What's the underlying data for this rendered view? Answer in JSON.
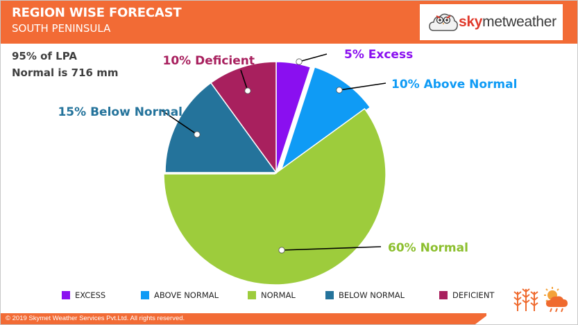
{
  "header": {
    "title": "REGION WISE FORECAST",
    "subtitle": "SOUTH PENINSULA",
    "colors": {
      "bar": "#f26b35",
      "text": "#ffffff"
    }
  },
  "logo": {
    "brand_bold": "sky",
    "brand_rest": "metweather",
    "icon": "cloud-owl-logo-icon"
  },
  "info": {
    "line1": "95% of LPA",
    "line2": "Normal is 716 mm"
  },
  "chart_data": {
    "type": "pie",
    "title": "",
    "start_angle_deg": 0,
    "exploded": "Normal",
    "slices": [
      {
        "name": "Excess",
        "legend": "EXCESS",
        "value": 5,
        "label": "5% Excess",
        "color": "#8a0ff0",
        "label_color": "#8a0ff0"
      },
      {
        "name": "Above Normal",
        "legend": "ABOVE NORMAL",
        "value": 10,
        "label": "10% Above Normal",
        "color": "#0f9bf5",
        "label_color": "#0f9bf5"
      },
      {
        "name": "Normal",
        "legend": "NORMAL",
        "value": 60,
        "label": "60% Normal",
        "color": "#9dcc3c",
        "label_color": "#8cbf2e"
      },
      {
        "name": "Below Normal",
        "legend": "BELOW NORMAL",
        "value": 15,
        "label": "15% Below Normal",
        "color": "#24739b",
        "label_color": "#24739b"
      },
      {
        "name": "Deficient",
        "legend": "DEFICIENT",
        "value": 10,
        "label": "10% Deficient",
        "color": "#a8205e",
        "label_color": "#a8205e"
      }
    ],
    "legend_position": "bottom"
  },
  "footer": {
    "copyright": "© 2019 Skymet Weather Services Pvt.Ltd. All rights reserved.",
    "icons": [
      "wheat-crop-icon",
      "sun-cloud-rain-icon"
    ]
  }
}
